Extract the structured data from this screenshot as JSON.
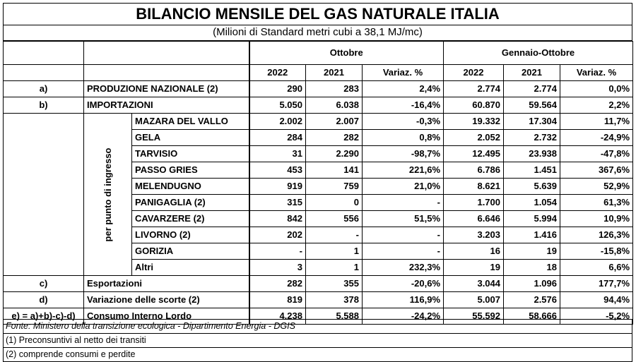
{
  "title": "BILANCIO MENSILE DEL GAS NATURALE ITALIA",
  "subtitle": "(Milioni di Standard metri cubi a 38,1 MJ/mc)",
  "headers": {
    "period1": "Ottobre",
    "period2": "Gennaio-Ottobre",
    "year_a": "2022",
    "year_b": "2021",
    "variation": "Variaz. %"
  },
  "vertical_label": "per punto di ingresso",
  "rows": {
    "a": {
      "label": "a)",
      "name": "PRODUZIONE NAZIONALE (2)",
      "v": [
        "290",
        "283",
        "2,4%",
        "2.774",
        "2.774",
        "0,0%"
      ]
    },
    "b": {
      "label": "b)",
      "name": "IMPORTAZIONI",
      "v": [
        "5.050",
        "6.038",
        "-16,4%",
        "60.870",
        "59.564",
        "2,2%"
      ]
    },
    "entry": [
      {
        "name": "MAZARA DEL VALLO",
        "v": [
          "2.002",
          "2.007",
          "-0,3%",
          "19.332",
          "17.304",
          "11,7%"
        ]
      },
      {
        "name": "GELA",
        "v": [
          "284",
          "282",
          "0,8%",
          "2.052",
          "2.732",
          "-24,9%"
        ]
      },
      {
        "name": "TARVISIO",
        "v": [
          "31",
          "2.290",
          "-98,7%",
          "12.495",
          "23.938",
          "-47,8%"
        ]
      },
      {
        "name": "PASSO GRIES",
        "v": [
          "453",
          "141",
          "221,6%",
          "6.786",
          "1.451",
          "367,6%"
        ]
      },
      {
        "name": "MELENDUGNO",
        "v": [
          "919",
          "759",
          "21,0%",
          "8.621",
          "5.639",
          "52,9%"
        ]
      },
      {
        "name": "PANIGAGLIA (2)",
        "v": [
          "315",
          "0",
          "-",
          "1.700",
          "1.054",
          "61,3%"
        ]
      },
      {
        "name": "CAVARZERE (2)",
        "v": [
          "842",
          "556",
          "51,5%",
          "6.646",
          "5.994",
          "10,9%"
        ]
      },
      {
        "name": "LIVORNO (2)",
        "v": [
          "202",
          "-",
          "-",
          "3.203",
          "1.416",
          "126,3%"
        ]
      },
      {
        "name": "GORIZIA",
        "v": [
          "-",
          "1",
          "-",
          "16",
          "19",
          "-15,8%"
        ]
      },
      {
        "name": "Altri",
        "v": [
          "3",
          "1",
          "232,3%",
          "19",
          "18",
          "6,6%"
        ]
      }
    ],
    "c": {
      "label": "c)",
      "name": "Esportazioni",
      "v": [
        "282",
        "355",
        "-20,6%",
        "3.044",
        "1.096",
        "177,7%"
      ]
    },
    "d": {
      "label": "d)",
      "name": "Variazione delle scorte (2)",
      "v": [
        "819",
        "378",
        "116,9%",
        "5.007",
        "2.576",
        "94,4%"
      ]
    },
    "e": {
      "label": "e) = a)+b)-c)-d)",
      "name": "Consumo Interno Lordo",
      "v": [
        "4.238",
        "5.588",
        "-24,2%",
        "55.592",
        "58.666",
        "-5,2%"
      ]
    }
  },
  "notes": {
    "source": "Fonte: Ministero della transizione ecologica - Dipartimento Energia - DGIS",
    "note1": "(1) Preconsuntivi al netto dei transiti",
    "note2": "(2) comprende consumi e perdite"
  }
}
